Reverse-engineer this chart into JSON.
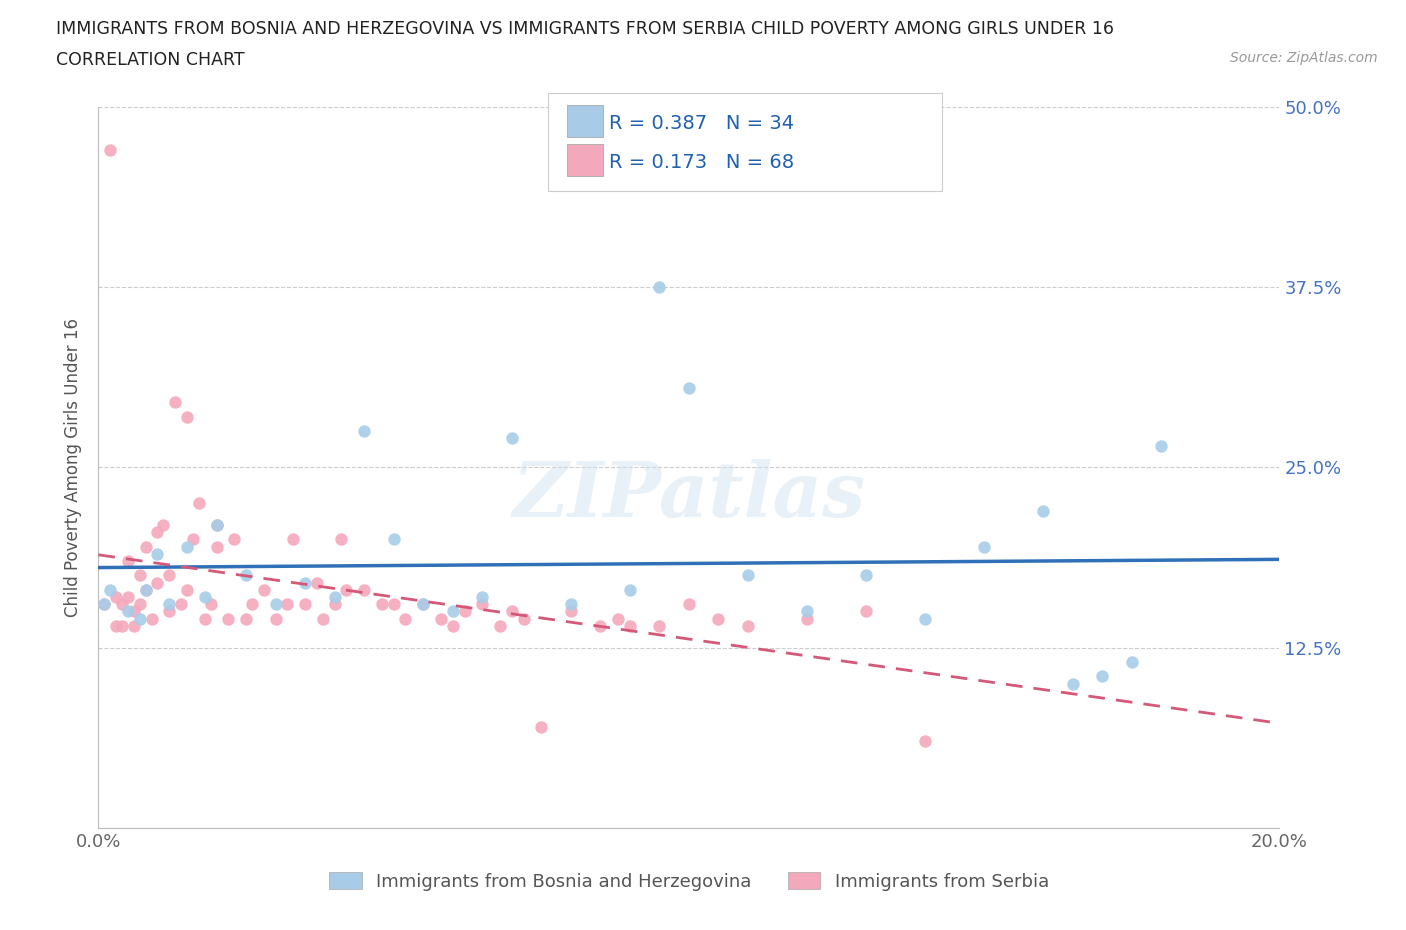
{
  "title_line1": "IMMIGRANTS FROM BOSNIA AND HERZEGOVINA VS IMMIGRANTS FROM SERBIA CHILD POVERTY AMONG GIRLS UNDER 16",
  "title_line2": "CORRELATION CHART",
  "source_text": "Source: ZipAtlas.com",
  "ylabel": "Child Poverty Among Girls Under 16",
  "xlim": [
    0.0,
    0.2
  ],
  "ylim": [
    0.0,
    0.5
  ],
  "xticks": [
    0.0,
    0.05,
    0.1,
    0.15,
    0.2
  ],
  "yticks": [
    0.0,
    0.125,
    0.25,
    0.375,
    0.5
  ],
  "color_bosnia": "#a8cce8",
  "color_serbia": "#f4a8bb",
  "color_trendline_bosnia": "#3070b8",
  "color_trendline_serbia": "#d45878",
  "legend_R_bosnia": "0.387",
  "legend_N_bosnia": "34",
  "legend_R_serbia": "0.173",
  "legend_N_serbia": "68",
  "legend_label_bosnia": "Immigrants from Bosnia and Herzegovina",
  "legend_label_serbia": "Immigrants from Serbia",
  "watermark": "ZIPatlas",
  "bosnia_x": [
    0.001,
    0.002,
    0.005,
    0.007,
    0.008,
    0.01,
    0.012,
    0.015,
    0.018,
    0.02,
    0.025,
    0.03,
    0.035,
    0.04,
    0.045,
    0.05,
    0.055,
    0.06,
    0.065,
    0.07,
    0.08,
    0.09,
    0.095,
    0.1,
    0.11,
    0.12,
    0.13,
    0.14,
    0.15,
    0.16,
    0.165,
    0.17,
    0.175,
    0.18
  ],
  "bosnia_y": [
    0.155,
    0.165,
    0.15,
    0.145,
    0.165,
    0.19,
    0.155,
    0.195,
    0.16,
    0.21,
    0.175,
    0.155,
    0.17,
    0.16,
    0.275,
    0.2,
    0.155,
    0.15,
    0.16,
    0.27,
    0.155,
    0.165,
    0.375,
    0.305,
    0.175,
    0.15,
    0.175,
    0.145,
    0.195,
    0.22,
    0.1,
    0.105,
    0.115,
    0.265
  ],
  "serbia_x": [
    0.001,
    0.002,
    0.003,
    0.003,
    0.004,
    0.004,
    0.005,
    0.005,
    0.006,
    0.006,
    0.007,
    0.007,
    0.008,
    0.008,
    0.009,
    0.01,
    0.01,
    0.011,
    0.012,
    0.012,
    0.013,
    0.014,
    0.015,
    0.015,
    0.016,
    0.017,
    0.018,
    0.019,
    0.02,
    0.02,
    0.022,
    0.023,
    0.025,
    0.026,
    0.028,
    0.03,
    0.032,
    0.033,
    0.035,
    0.037,
    0.038,
    0.04,
    0.041,
    0.042,
    0.045,
    0.048,
    0.05,
    0.052,
    0.055,
    0.058,
    0.06,
    0.062,
    0.065,
    0.068,
    0.07,
    0.072,
    0.075,
    0.08,
    0.085,
    0.088,
    0.09,
    0.095,
    0.1,
    0.105,
    0.11,
    0.12,
    0.13,
    0.14
  ],
  "serbia_y": [
    0.155,
    0.47,
    0.16,
    0.14,
    0.155,
    0.14,
    0.185,
    0.16,
    0.15,
    0.14,
    0.175,
    0.155,
    0.195,
    0.165,
    0.145,
    0.205,
    0.17,
    0.21,
    0.15,
    0.175,
    0.295,
    0.155,
    0.285,
    0.165,
    0.2,
    0.225,
    0.145,
    0.155,
    0.195,
    0.21,
    0.145,
    0.2,
    0.145,
    0.155,
    0.165,
    0.145,
    0.155,
    0.2,
    0.155,
    0.17,
    0.145,
    0.155,
    0.2,
    0.165,
    0.165,
    0.155,
    0.155,
    0.145,
    0.155,
    0.145,
    0.14,
    0.15,
    0.155,
    0.14,
    0.15,
    0.145,
    0.07,
    0.15,
    0.14,
    0.145,
    0.14,
    0.14,
    0.155,
    0.145,
    0.14,
    0.145,
    0.15,
    0.06
  ]
}
